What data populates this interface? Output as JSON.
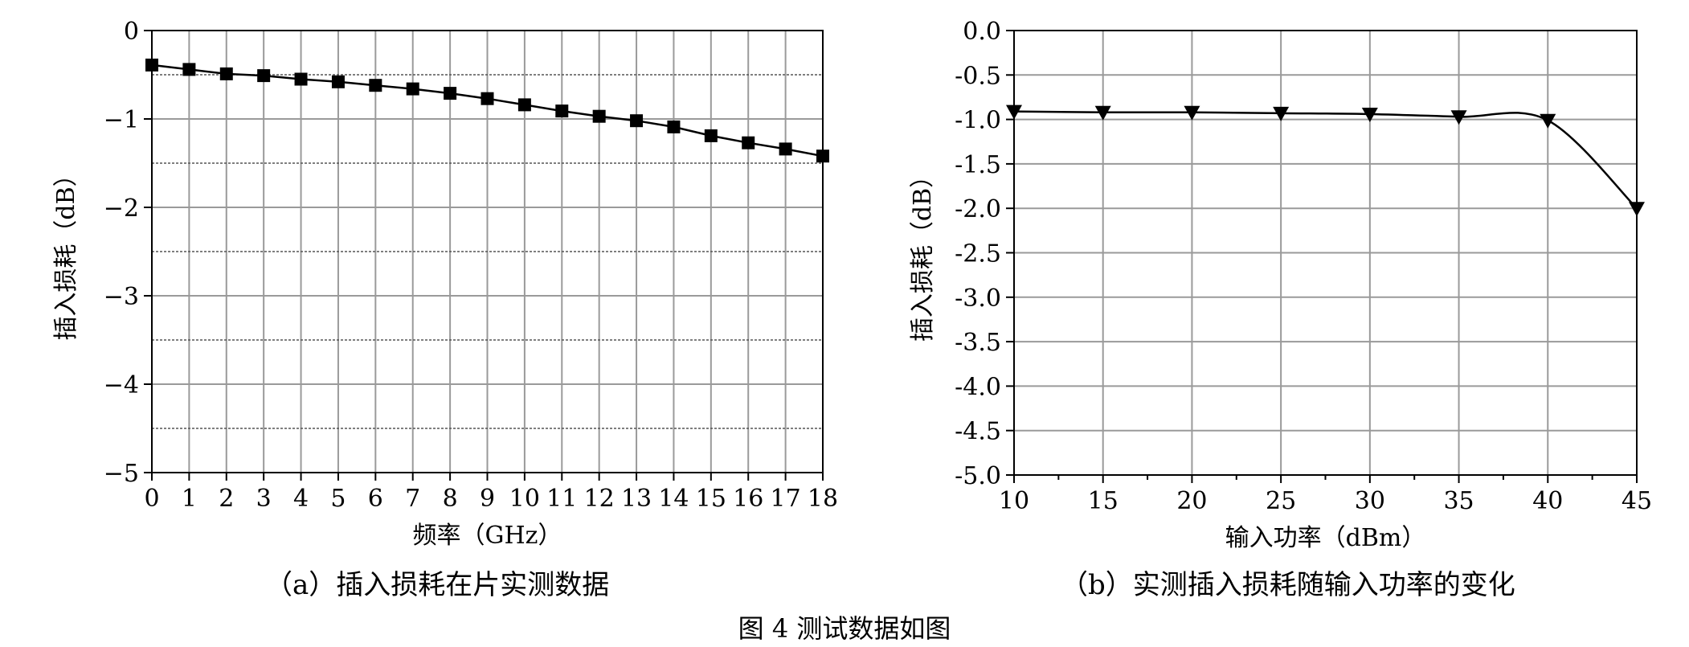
{
  "figure": {
    "title": "图 4   测试数据如图"
  },
  "chart_data": [
    {
      "type": "line",
      "caption": "（a）插入损耗在片实测数据",
      "xlabel": "频率（GHz）",
      "ylabel": "插入损耗（dB）",
      "xlim": [
        0,
        18
      ],
      "ylim": [
        -5,
        0
      ],
      "xticks": [
        0,
        1,
        2,
        3,
        4,
        5,
        6,
        7,
        8,
        9,
        10,
        11,
        12,
        13,
        14,
        15,
        16,
        17,
        18
      ],
      "xtick_labels": [
        "0",
        "1",
        "2",
        "3",
        "4",
        "5",
        "6",
        "7",
        "8",
        "9",
        "10",
        "11",
        "12",
        "13",
        "14",
        "15",
        "16",
        "17",
        "18"
      ],
      "yticks": [
        0,
        -1,
        -2,
        -3,
        -4,
        -5
      ],
      "ytick_labels": [
        "0",
        "−1",
        "−2",
        "−3",
        "−4",
        "−5"
      ],
      "grid": "on",
      "marker": "square",
      "series": [
        {
          "x": [
            0,
            1,
            2,
            3,
            4,
            5,
            6,
            7,
            8,
            9,
            10,
            11,
            12,
            13,
            14,
            15,
            16,
            17,
            18
          ],
          "values": [
            -0.39,
            -0.44,
            -0.49,
            -0.51,
            -0.55,
            -0.58,
            -0.62,
            -0.66,
            -0.71,
            -0.77,
            -0.84,
            -0.91,
            -0.97,
            -1.02,
            -1.09,
            -1.19,
            -1.27,
            -1.34,
            -1.42
          ]
        }
      ]
    },
    {
      "type": "line",
      "caption": "（b）实测插入损耗随输入功率的变化",
      "xlabel": "输入功率（dBm）",
      "ylabel": "插入损耗（dB）",
      "xlim": [
        10,
        45
      ],
      "ylim": [
        -5,
        0
      ],
      "xticks": [
        10,
        15,
        20,
        25,
        30,
        35,
        40,
        45
      ],
      "xtick_labels": [
        "10",
        "15",
        "20",
        "25",
        "30",
        "35",
        "40",
        "45"
      ],
      "yticks": [
        0,
        -0.5,
        -1,
        -1.5,
        -2,
        -2.5,
        -3,
        -3.5,
        -4,
        -4.5,
        -5
      ],
      "ytick_labels": [
        "0.0",
        "-0.5",
        "-1.0",
        "-1.5",
        "-2.0",
        "-2.5",
        "-3.0",
        "-3.5",
        "-4.0",
        "-4.5",
        "-5.0"
      ],
      "grid": "on",
      "marker": "triangle-down",
      "series": [
        {
          "x": [
            10,
            15,
            20,
            25,
            30,
            35,
            40,
            45
          ],
          "values": [
            -0.91,
            -0.92,
            -0.92,
            -0.93,
            -0.94,
            -0.97,
            -1.01,
            -2.0
          ]
        }
      ]
    }
  ]
}
